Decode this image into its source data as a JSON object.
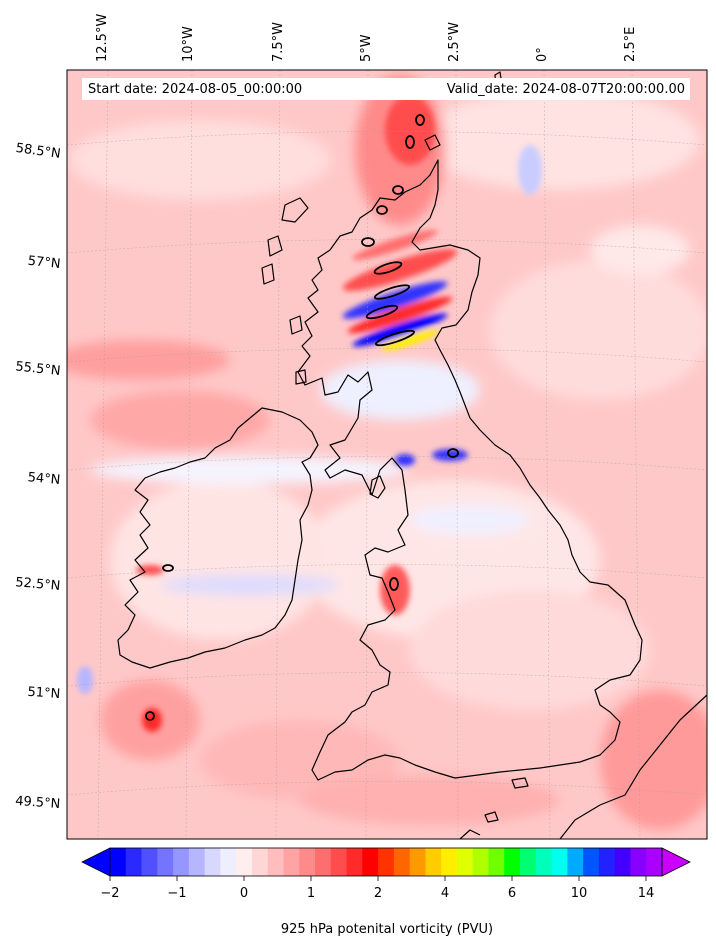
{
  "map": {
    "start_date": "Start date: 2024-08-05_00:00:00",
    "valid_date": "Valid_date: 2024-08-07T20:00:00.00",
    "lon_labels": [
      "12.5°W",
      "10°W",
      "7.5°W",
      "5°W",
      "2.5°W",
      "0°",
      "2.5°E"
    ],
    "lat_labels": [
      "58.5°N",
      "57°N",
      "55.5°N",
      "54°N",
      "52.5°N",
      "51°N",
      "49.5°N"
    ],
    "field_colors": {
      "background_pink": "#ffd0d0",
      "light_pink": "#ffe4e4",
      "medium_red": "#ff9a9a",
      "strong_red": "#ff5a5a",
      "negative_blue": "#c8ccff",
      "deep_blue": "#3030ff",
      "coastline": "#000000"
    }
  },
  "colorbar": {
    "label": "925 hPa potenital vorticity (PVU)",
    "tick_labels": [
      "−2",
      "−1",
      "0",
      "1",
      "2",
      "4",
      "6",
      "10",
      "14"
    ],
    "colors": [
      "#0000ff",
      "#2a2aff",
      "#5050ff",
      "#7474ff",
      "#9696ff",
      "#b6b6ff",
      "#d8d8ff",
      "#eeeeff",
      "#ffeeee",
      "#ffd6d6",
      "#ffbdbd",
      "#ffa3a3",
      "#ff8a8a",
      "#ff6e6e",
      "#ff4d4d",
      "#ff2a2a",
      "#ff0000",
      "#ff3300",
      "#ff6600",
      "#ff9900",
      "#ffcc00",
      "#ffee00",
      "#e0ff00",
      "#b0ff00",
      "#70ff00",
      "#00ff00",
      "#00ff70",
      "#00ffbb",
      "#00ffee",
      "#00aaff",
      "#0055ff",
      "#2222ff",
      "#4400ff",
      "#8800ff",
      "#aa00ff"
    ],
    "over_color": "#cc00ff",
    "under_color": "#0000ff"
  }
}
